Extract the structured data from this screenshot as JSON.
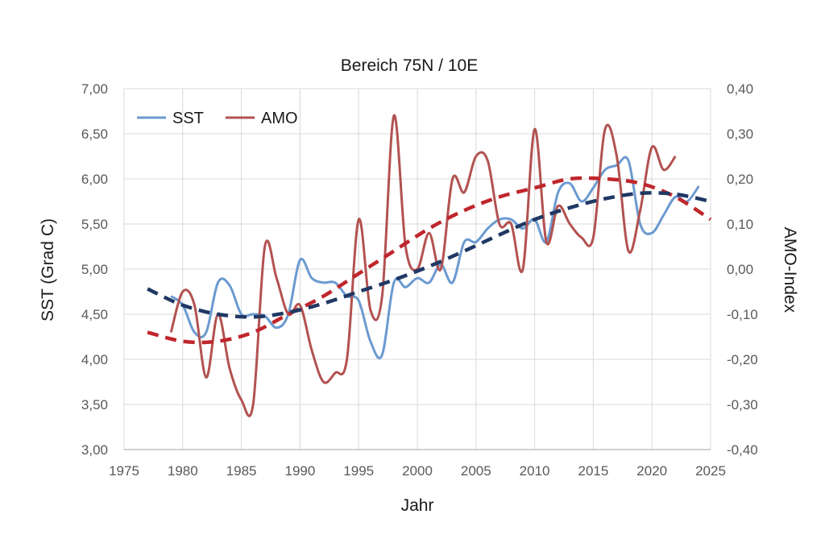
{
  "chart_data": {
    "type": "line",
    "title": "Bereich 75N / 10E",
    "xlabel": "Jahr",
    "ylabel": "SST (Grad C)",
    "y2label": "AMO-Index",
    "xlim": [
      1975,
      2025
    ],
    "ylim": [
      3.0,
      7.0
    ],
    "y2lim": [
      -0.4,
      0.4
    ],
    "x_ticks": [
      "1975",
      "1980",
      "1985",
      "1990",
      "1995",
      "2000",
      "2005",
      "2010",
      "2015",
      "2020",
      "2025"
    ],
    "y_ticks": [
      "3,00",
      "3,50",
      "4,00",
      "4,50",
      "5,00",
      "5,50",
      "6,00",
      "6,50",
      "7,00"
    ],
    "y2_ticks": [
      "-0,40",
      "-0,30",
      "-0,20",
      "-0,10",
      "0,00",
      "0,10",
      "0,20",
      "0,30",
      "0,40"
    ],
    "grid": true,
    "legend_position": "top-left",
    "series": [
      {
        "name": "SST",
        "axis": "left",
        "color": "#6b9ad0",
        "style": "solid",
        "x": [
          1979,
          1980,
          1981,
          1982,
          1983,
          1984,
          1985,
          1986,
          1987,
          1988,
          1989,
          1990,
          1991,
          1992,
          1993,
          1994,
          1995,
          1996,
          1997,
          1998,
          1999,
          2000,
          2001,
          2002,
          2003,
          2004,
          2005,
          2006,
          2007,
          2008,
          2009,
          2010,
          2011,
          2012,
          2013,
          2014,
          2015,
          2016,
          2017,
          2018,
          2019,
          2020,
          2021,
          2022,
          2023,
          2024
        ],
        "values": [
          4.7,
          4.6,
          4.3,
          4.3,
          4.85,
          4.82,
          4.5,
          4.5,
          4.48,
          4.35,
          4.5,
          5.1,
          4.9,
          4.85,
          4.85,
          4.7,
          4.65,
          4.2,
          4.05,
          4.85,
          4.8,
          4.9,
          4.85,
          5.05,
          4.85,
          5.3,
          5.3,
          5.45,
          5.55,
          5.55,
          5.45,
          5.55,
          5.3,
          5.85,
          5.95,
          5.75,
          5.9,
          6.1,
          6.15,
          6.2,
          5.5,
          5.4,
          5.6,
          5.8,
          5.75,
          5.92
        ]
      },
      {
        "name": "AMO",
        "axis": "right",
        "color": "#b25250",
        "style": "solid",
        "x": [
          1979,
          1980,
          1981,
          1982,
          1983,
          1984,
          1985,
          1986,
          1987,
          1988,
          1989,
          1990,
          1991,
          1992,
          1993,
          1994,
          1995,
          1996,
          1997,
          1998,
          1999,
          2000,
          2001,
          2002,
          2003,
          2004,
          2005,
          2006,
          2007,
          2008,
          2009,
          2010,
          2011,
          2012,
          2013,
          2014,
          2015,
          2016,
          2017,
          2018,
          2019,
          2020,
          2021,
          2022
        ],
        "values": [
          -0.14,
          -0.05,
          -0.08,
          -0.24,
          -0.1,
          -0.22,
          -0.29,
          -0.3,
          0.05,
          -0.02,
          -0.1,
          -0.08,
          -0.18,
          -0.25,
          -0.23,
          -0.2,
          0.11,
          -0.09,
          -0.06,
          0.34,
          0.05,
          0.0,
          0.08,
          0.0,
          0.2,
          0.17,
          0.25,
          0.24,
          0.1,
          0.1,
          0.0,
          0.31,
          0.06,
          0.14,
          0.1,
          0.07,
          0.07,
          0.31,
          0.25,
          0.04,
          0.13,
          0.27,
          0.22,
          0.25
        ]
      },
      {
        "axis": "left",
        "color": "#1f3864",
        "style": "dashed",
        "x": [
          1977,
          1980,
          1983,
          1986,
          1989,
          1992,
          1995,
          1998,
          2001,
          2004,
          2007,
          2010,
          2013,
          2016,
          2019,
          2022,
          2025
        ],
        "values": [
          4.78,
          4.6,
          4.5,
          4.47,
          4.52,
          4.62,
          4.75,
          4.88,
          5.03,
          5.2,
          5.38,
          5.55,
          5.68,
          5.78,
          5.84,
          5.83,
          5.75
        ]
      },
      {
        "axis": "right",
        "color": "#c0262c",
        "style": "dashed",
        "x": [
          1977,
          1980,
          1983,
          1986,
          1989,
          1992,
          1995,
          1998,
          2001,
          2004,
          2007,
          2010,
          2013,
          2016,
          2019,
          2022,
          2025
        ],
        "values": [
          -0.14,
          -0.16,
          -0.16,
          -0.14,
          -0.1,
          -0.06,
          -0.01,
          0.04,
          0.09,
          0.13,
          0.16,
          0.18,
          0.2,
          0.2,
          0.19,
          0.16,
          0.11
        ]
      }
    ]
  }
}
